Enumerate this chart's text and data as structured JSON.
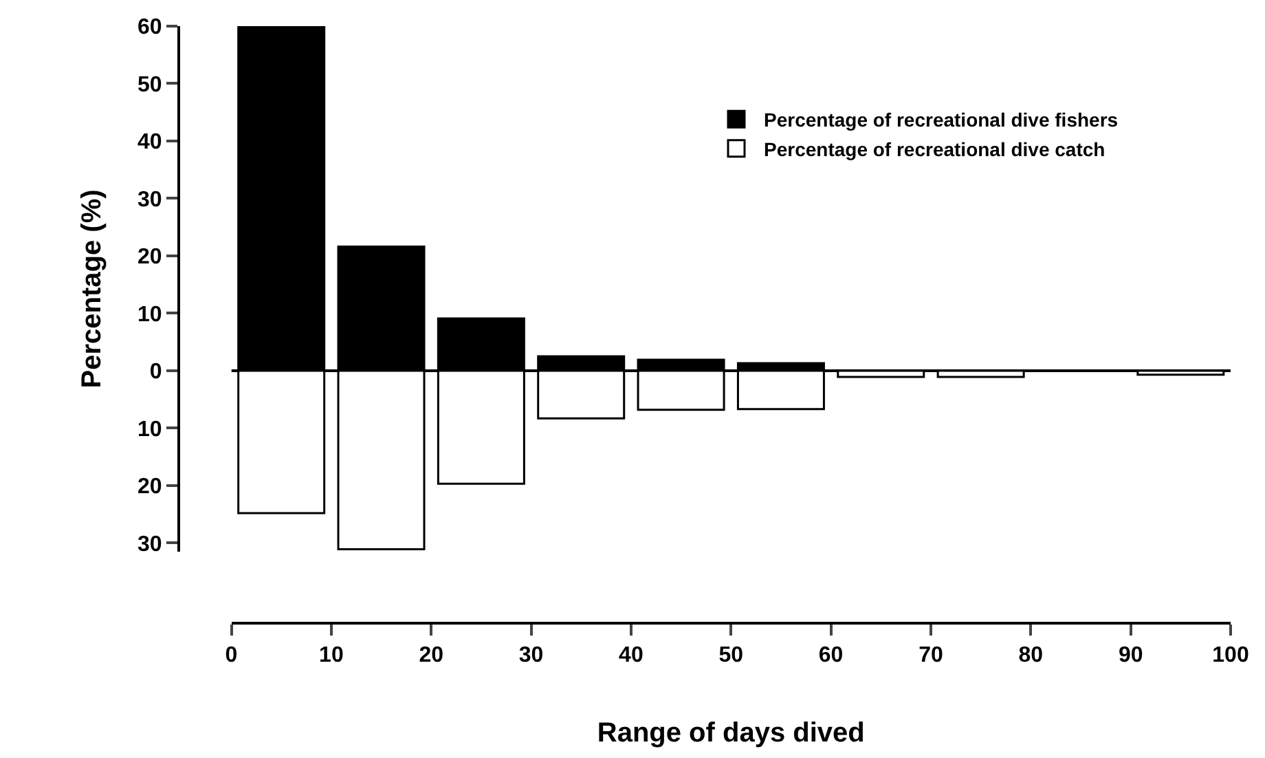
{
  "chart_data": {
    "type": "bar",
    "xlabel": "Range of days dived",
    "ylabel": "Percentage (%)",
    "x": [
      5,
      15,
      25,
      35,
      45,
      55,
      65,
      75,
      85,
      95
    ],
    "series": [
      {
        "name": "Percentage of recreational dive fishers",
        "color": "#000000",
        "values": [
          60,
          21.6,
          9.1,
          2.5,
          1.9,
          1.3,
          0,
          0,
          0,
          0
        ]
      },
      {
        "name": "Percentage of recreational dive catch",
        "color": "#ffffff",
        "values": [
          -24.8,
          -31.1,
          -19.7,
          -8.3,
          -6.8,
          -6.7,
          -1.1,
          -1.1,
          0,
          -0.7
        ]
      }
    ],
    "stacked": true,
    "xlim": [
      0,
      100
    ],
    "xticks": [
      0,
      10,
      20,
      30,
      40,
      50,
      60,
      70,
      80,
      90,
      100
    ],
    "ylim": [
      -31.5,
      60
    ],
    "ref_lines": [
      {
        "axis": "y",
        "value": 0,
        "color": "#000000"
      }
    ],
    "yticks": [
      {
        "value": -30,
        "label": "30"
      },
      {
        "value": -20,
        "label": "20"
      },
      {
        "value": -10,
        "label": "10"
      },
      0,
      10,
      20,
      30,
      40,
      50,
      60
    ],
    "grid": false,
    "legend": "top right"
  }
}
